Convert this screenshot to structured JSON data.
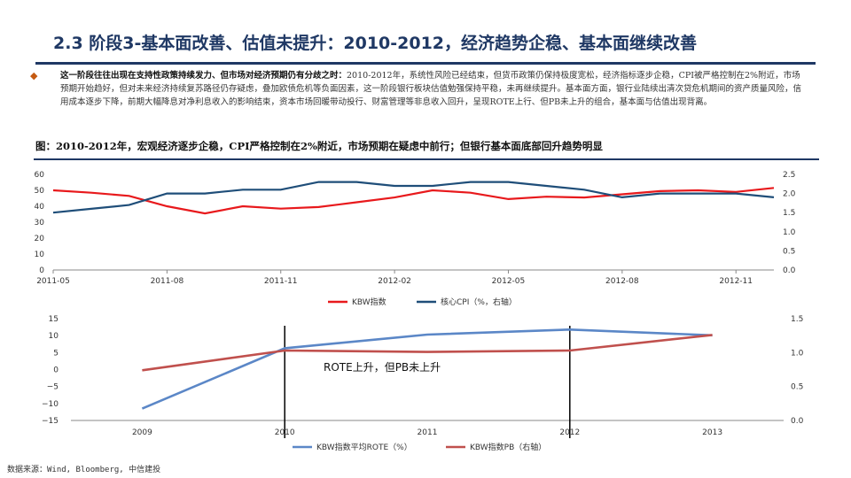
{
  "slide": {
    "title": "2.3 阶段3-基本面改善、估值未提升：2010-2012，经济趋势企稳、基本面继续改善",
    "bullet_lead": "这一阶段往往出现在支持性政策持续发力、但市场对经济预期仍有分歧之时：",
    "bullet_body": "2010-2012年，系统性风险已经结束，但货币政策仍保持极度宽松，经济指标逐步企稳，CPI被严格控制在2%附近，市场预期开始趋好，但对未来经济持续复苏路径仍存疑虑，叠加欧债危机等负面因素，这一阶段银行板块估值勉强保持平稳，未再继续提升。基本面方面，银行业陆续出清次贷危机期间的资产质量风险，信用成本逐步下降，前期大幅降息对净利息收入的影响结束，资本市场回暖带动投行、财富管理等非息收入回升，呈现ROTE上行、但PB未上升的组合，基本面与估值出现背离。",
    "figure_title": "图：2010-2012年，宏观经济逐步企稳，CPI严格控制在2%附近，市场预期在疑虑中前行；但银行基本面底部回升趋势明显",
    "source": "数据来源：Wind, Bloomberg, 中信建投"
  },
  "chart_data": [
    {
      "type": "line",
      "x_ticks": [
        "2011-05",
        "2011-08",
        "2011-11",
        "2012-02",
        "2012-05",
        "2012-08",
        "2012-11"
      ],
      "x": [
        "2011-05",
        "2011-06",
        "2011-07",
        "2011-08",
        "2011-09",
        "2011-10",
        "2011-11",
        "2011-12",
        "2012-01",
        "2012-02",
        "2012-03",
        "2012-04",
        "2012-05",
        "2012-06",
        "2012-07",
        "2012-08",
        "2012-09",
        "2012-10",
        "2012-11",
        "2012-12"
      ],
      "ylim_left": [
        0,
        60
      ],
      "yticks_left": [
        "0",
        "10",
        "20",
        "30",
        "40",
        "50",
        "60"
      ],
      "ylim_right": [
        0,
        2.5
      ],
      "yticks_right": [
        "0.0",
        "0.5",
        "1.0",
        "1.5",
        "2.0",
        "2.5"
      ],
      "series": [
        {
          "name": "KBW指数",
          "axis": "left",
          "color": "#e8191c",
          "values": [
            50,
            48.5,
            46.5,
            40,
            35.5,
            40,
            38.5,
            39.5,
            42.5,
            45.5,
            50,
            48.5,
            44.5,
            46,
            45.5,
            47.5,
            49.5,
            50,
            49,
            51.5
          ]
        },
        {
          "name": "核心CPI（%，右轴）",
          "axis": "right",
          "color": "#1f4e79",
          "values": [
            1.5,
            1.6,
            1.7,
            2.0,
            2.0,
            2.1,
            2.1,
            2.3,
            2.3,
            2.2,
            2.2,
            2.3,
            2.3,
            2.2,
            2.1,
            1.9,
            2.0,
            2.0,
            2.0,
            1.9
          ]
        }
      ]
    },
    {
      "type": "line",
      "x": [
        "2009",
        "2010",
        "2011",
        "2012",
        "2013"
      ],
      "ylim_left": [
        -15,
        15
      ],
      "yticks_left": [
        "15",
        "10",
        "5",
        "0",
        "−5",
        "−10",
        "−15"
      ],
      "ylim_right": [
        0,
        1.5
      ],
      "yticks_right": [
        "1.5",
        "1.0",
        "0.5",
        "0.0"
      ],
      "annotation": "ROTE上升，但PB未上升",
      "series": [
        {
          "name": "KBW指数平均ROTE（%）",
          "axis": "left",
          "color": "#5b87c7",
          "values": [
            -11.5,
            6.3,
            10.3,
            11.8,
            10.1
          ]
        },
        {
          "name": "KBW指数PB（右轴）",
          "axis": "right",
          "color": "#c0504d",
          "values": [
            0.74,
            1.03,
            1.01,
            1.03,
            1.26
          ]
        }
      ]
    }
  ]
}
